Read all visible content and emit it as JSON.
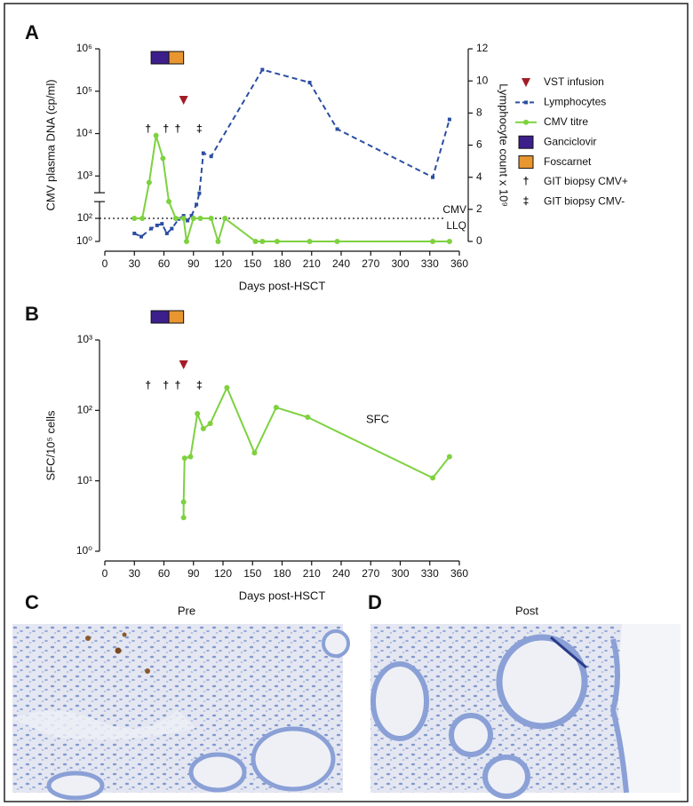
{
  "chart_data": [
    {
      "type": "line",
      "label": "A",
      "x_label": "Days post-HSCT",
      "y_label": "CMV plasma DNA (cp/ml)",
      "y2_label": "Lymphocyte count x 10⁹",
      "xlim": [
        0,
        360
      ],
      "xticks": [
        0,
        30,
        60,
        90,
        120,
        150,
        180,
        210,
        240,
        270,
        300,
        330,
        360
      ],
      "ylim": [
        1,
        1000000
      ],
      "log": true,
      "axis_break": [
        100,
        1000
      ],
      "yticks": [
        {
          "value": 1,
          "label": "10⁰"
        },
        {
          "value": 100,
          "label": "10²"
        },
        {
          "value": 1000,
          "label": "10³"
        },
        {
          "value": 10000,
          "label": "10⁴"
        },
        {
          "value": 100000,
          "label": "10⁵"
        },
        {
          "value": 1000000,
          "label": "10⁶"
        }
      ],
      "y2lim": [
        0,
        12
      ],
      "y2ticks": [
        0,
        2,
        4,
        6,
        8,
        10,
        12
      ],
      "reference_line": {
        "value": 100,
        "label": [
          "CMV",
          "LLQ"
        ]
      },
      "series": [
        {
          "name": "Lymphocytes",
          "color": "#2b4ea3",
          "axis": "y2",
          "dashed": true,
          "marker": "square",
          "x": [
            30,
            37,
            47,
            53,
            58,
            63,
            68,
            75,
            80,
            84,
            88,
            93,
            96,
            100,
            108,
            160,
            208,
            236,
            333,
            350
          ],
          "values": [
            0.5,
            0.3,
            0.8,
            1.0,
            1.1,
            0.5,
            0.8,
            1.4,
            1.6,
            1.3,
            1.6,
            2.3,
            3.0,
            5.5,
            5.3,
            10.7,
            9.9,
            7.0,
            4.0,
            7.6
          ]
        },
        {
          "name": "CMV titre",
          "color": "#7ed13f",
          "marker": "circle",
          "x": [
            30,
            38,
            45,
            52,
            59,
            65,
            72,
            80,
            83,
            90,
            97,
            108,
            115,
            122,
            153,
            160,
            175,
            208,
            236,
            333,
            350
          ],
          "values": [
            100,
            100,
            700,
            9000,
            2600,
            250,
            100,
            100,
            1,
            100,
            100,
            100,
            1,
            100,
            1,
            1,
            1,
            1,
            1,
            1,
            1
          ]
        }
      ],
      "treatments": [
        {
          "name": "Ganciclovir",
          "color": "#3d1f8c",
          "start": 47,
          "end": 65
        },
        {
          "name": "Foscarnet",
          "color": "#e8962f",
          "start": 65,
          "end": 80
        }
      ],
      "events": [
        {
          "name": "VST infusion",
          "marker": "triangle",
          "color": "#a31c25",
          "x": [
            80
          ]
        },
        {
          "name": "GIT biopsy CMV+",
          "symbol": "†",
          "x": [
            44,
            62,
            74
          ]
        },
        {
          "name": "GIT biopsy CMV-",
          "symbol": "‡",
          "x": [
            96
          ]
        }
      ]
    },
    {
      "type": "line",
      "label": "B",
      "x_label": "Days post-HSCT",
      "y_label": "SFC/10⁵ cells",
      "xlim": [
        0,
        360
      ],
      "xticks": [
        0,
        30,
        60,
        90,
        120,
        150,
        180,
        210,
        240,
        270,
        300,
        330,
        360
      ],
      "ylim": [
        1,
        1000
      ],
      "log": true,
      "yticks": [
        {
          "value": 1,
          "label": "10⁰"
        },
        {
          "value": 10,
          "label": "10¹"
        },
        {
          "value": 100,
          "label": "10²"
        },
        {
          "value": 1000,
          "label": "10³"
        }
      ],
      "series": [
        {
          "name": "SFC",
          "color": "#7ed13f",
          "marker": "circle",
          "x": [
            80,
            80,
            81,
            87,
            94,
            100,
            107,
            124,
            152,
            174,
            206,
            333,
            350
          ],
          "values": [
            3,
            5,
            21,
            22,
            90,
            55,
            65,
            210,
            25,
            110,
            80,
            11,
            22
          ]
        }
      ]
    }
  ],
  "images": [
    {
      "label": "C",
      "title": "Pre"
    },
    {
      "label": "D",
      "title": "Post"
    }
  ]
}
